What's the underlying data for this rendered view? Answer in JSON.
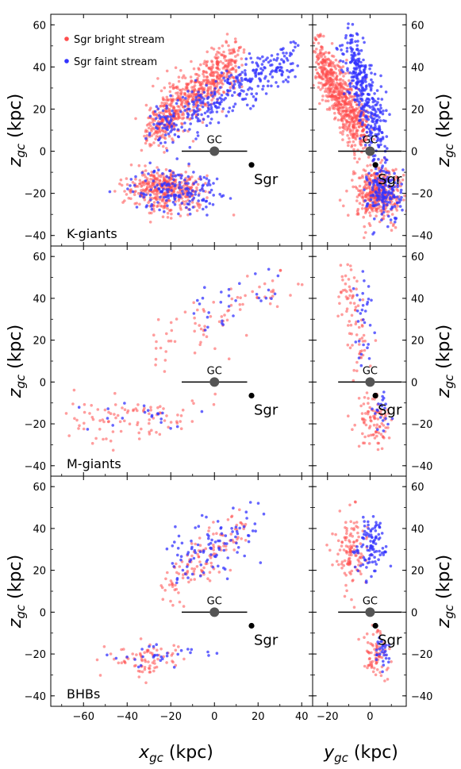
{
  "chart_data": {
    "type": "scatter",
    "xlabel_main": "x",
    "xlabel_main_sub": "gc",
    "xlabel_side": "y",
    "xlabel_side_sub": "gc",
    "unit": "(kpc)",
    "ylabel": "z",
    "ylabel_sub": "gc",
    "xlim_main": [
      -75,
      45
    ],
    "xticks_main": [
      -60,
      -40,
      -20,
      0,
      20,
      40
    ],
    "xlim_side": [
      -27,
      17
    ],
    "xticks_side": [
      -20,
      0
    ],
    "ylim": [
      -45,
      65
    ],
    "yticks": [
      -40,
      -20,
      0,
      20,
      40,
      60
    ],
    "legend": {
      "placement": "top-left",
      "entries": [
        {
          "label": "Sgr bright stream",
          "color": "#ff4d4d"
        },
        {
          "label": "Sgr faint stream",
          "color": "#3333ff"
        }
      ]
    },
    "annotations": {
      "gc_label": "GC",
      "sgr_label": "Sgr",
      "gc_point": [
        0,
        0
      ],
      "gc_bar_half_width_kpc": 15,
      "sgr_main": [
        17,
        -6.5
      ],
      "sgr_side": [
        2.5,
        -6.5
      ]
    },
    "colors": {
      "bright": "#ff4d4d",
      "faint": "#3333ff",
      "gc": "#555555",
      "sgr": "#000000"
    },
    "panels": [
      {
        "name": "K-giants",
        "label": "K-giants",
        "bright": {
          "n": 1050,
          "clusters_main": [
            {
              "w": 0.63,
              "kind": "band",
              "xs": [
                -30,
                10
              ],
              "xz": [
                [
                  -30,
                  10
                ],
                [
                  10,
                  43
                ]
              ],
              "zsd": 6
            },
            {
              "w": 0.37,
              "kind": "blob",
              "x": -22,
              "z": -18,
              "sx": 9,
              "sz": 5
            }
          ],
          "clusters_side": [
            {
              "w": 0.63,
              "kind": "band",
              "ys": [
                -25,
                -3
              ],
              "yz": [
                [
                  -25,
                  45
                ],
                [
                  -3,
                  8
                ]
              ],
              "zsd": 6
            },
            {
              "w": 0.37,
              "kind": "blob",
              "y": 3,
              "z": -20,
              "sx": 5,
              "sz": 7
            }
          ]
        },
        "faint": {
          "n": 520,
          "clusters_main": [
            {
              "w": 0.68,
              "kind": "band",
              "xs": [
                -28,
                36
              ],
              "xz": [
                [
                  -28,
                  10
                ],
                [
                  36,
                  44
                ]
              ],
              "zsd": 6
            },
            {
              "w": 0.32,
              "kind": "blob",
              "x": -18,
              "z": -18,
              "sx": 10,
              "sz": 5
            }
          ],
          "clusters_side": [
            {
              "w": 0.68,
              "kind": "band",
              "ys": [
                -10,
                5
              ],
              "yz": [
                [
                  -10,
                  50
                ],
                [
                  5,
                  5
                ]
              ],
              "zsd": 7
            },
            {
              "w": 0.32,
              "kind": "blob",
              "y": 7,
              "z": -20,
              "sx": 4,
              "sz": 7
            }
          ]
        }
      },
      {
        "name": "M-giants",
        "label": "M-giants",
        "bright": {
          "n": 170,
          "clusters_main": [
            {
              "w": 0.45,
              "kind": "band",
              "xs": [
                -30,
                38
              ],
              "xz": [
                [
                  -30,
                  15
                ],
                [
                  38,
                  50
                ]
              ],
              "zsd": 6
            },
            {
              "w": 0.55,
              "kind": "blob",
              "x": -40,
              "z": -17,
              "sx": 16,
              "sz": 5
            }
          ],
          "clusters_side": [
            {
              "w": 0.45,
              "kind": "band",
              "ys": [
                -12,
                -4
              ],
              "yz": [
                [
                  -12,
                  50
                ],
                [
                  -4,
                  10
                ]
              ],
              "zsd": 6
            },
            {
              "w": 0.55,
              "kind": "blob",
              "y": 2,
              "z": -18,
              "sx": 4,
              "sz": 7
            }
          ]
        },
        "faint": {
          "n": 50,
          "clusters_main": [
            {
              "w": 0.6,
              "kind": "band",
              "xs": [
                -15,
                30
              ],
              "xz": [
                [
                  -15,
                  28
                ],
                [
                  30,
                  45
                ]
              ],
              "zsd": 8
            },
            {
              "w": 0.4,
              "kind": "blob",
              "x": -35,
              "z": -16,
              "sx": 12,
              "sz": 4
            }
          ],
          "clusters_side": [
            {
              "w": 0.6,
              "kind": "band",
              "ys": [
                -4,
                -2
              ],
              "yz": [
                [
                  -4,
                  45
                ],
                [
                  -2,
                  15
                ]
              ],
              "zsd": 8
            },
            {
              "w": 0.4,
              "kind": "blob",
              "y": 5,
              "z": -14,
              "sx": 3,
              "sz": 6
            }
          ]
        }
      },
      {
        "name": "BHBs",
        "label": "BHBs",
        "bright": {
          "n": 200,
          "clusters_main": [
            {
              "w": 0.62,
              "kind": "band",
              "xs": [
                -22,
                15
              ],
              "xz": [
                [
                  -22,
                  10
                ],
                [
                  15,
                  42
                ]
              ],
              "zsd": 6
            },
            {
              "w": 0.38,
              "kind": "blob",
              "x": -30,
              "z": -22,
              "sx": 8,
              "sz": 4
            }
          ],
          "clusters_side": [
            {
              "w": 0.62,
              "kind": "blob",
              "y": -9,
              "z": 30,
              "sx": 4,
              "sz": 9
            },
            {
              "w": 0.38,
              "kind": "blob",
              "y": 3,
              "z": -20,
              "sx": 3,
              "sz": 5
            }
          ]
        },
        "faint": {
          "n": 130,
          "clusters_main": [
            {
              "w": 0.78,
              "kind": "band",
              "xs": [
                -20,
                20
              ],
              "xz": [
                [
                  -20,
                  22
                ],
                [
                  20,
                  40
                ]
              ],
              "zsd": 7
            },
            {
              "w": 0.22,
              "kind": "blob",
              "x": -25,
              "z": -20,
              "sx": 10,
              "sz": 3
            }
          ],
          "clusters_side": [
            {
              "w": 0.78,
              "kind": "blob",
              "y": 0,
              "z": 32,
              "sx": 4,
              "sz": 8
            },
            {
              "w": 0.22,
              "kind": "blob",
              "y": 6,
              "z": -18,
              "sx": 2,
              "sz": 4
            }
          ]
        }
      }
    ]
  }
}
